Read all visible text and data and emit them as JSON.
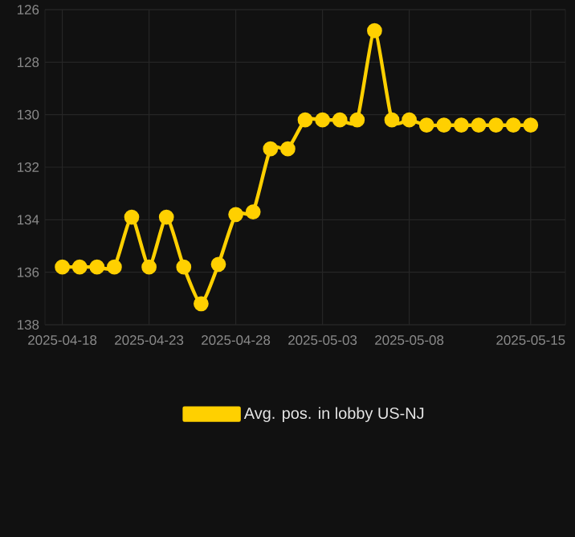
{
  "chart_data": {
    "type": "line",
    "x": [
      "2025-04-18",
      "2025-04-19",
      "2025-04-20",
      "2025-04-21",
      "2025-04-22",
      "2025-04-23",
      "2025-04-24",
      "2025-04-25",
      "2025-04-26",
      "2025-04-27",
      "2025-04-28",
      "2025-04-29",
      "2025-04-30",
      "2025-05-01",
      "2025-05-02",
      "2025-05-03",
      "2025-05-04",
      "2025-05-05",
      "2025-05-06",
      "2025-05-07",
      "2025-05-08",
      "2025-05-09",
      "2025-05-10",
      "2025-05-11",
      "2025-05-12",
      "2025-05-13",
      "2025-05-14",
      "2025-05-15"
    ],
    "series": [
      {
        "name": "Avg. pos. in lobby US-NJ",
        "color": "#ffd000",
        "values": [
          135.8,
          135.8,
          135.8,
          135.8,
          133.9,
          135.8,
          133.9,
          135.8,
          137.2,
          135.7,
          133.8,
          133.7,
          131.3,
          131.3,
          130.2,
          130.2,
          130.2,
          130.2,
          126.8,
          130.2,
          130.2,
          130.4,
          130.4,
          130.4,
          130.4,
          130.4,
          130.4,
          130.4
        ]
      }
    ],
    "xlim": [
      "2025-04-17",
      "2025-05-17"
    ],
    "xticks": [
      "2025-04-18",
      "2025-04-23",
      "2025-04-28",
      "2025-05-03",
      "2025-05-08",
      "2025-05-15"
    ],
    "ylim": [
      138,
      126
    ],
    "yticks": [
      126,
      128,
      130,
      132,
      134,
      136,
      138
    ],
    "grid": true,
    "legend": "bottom",
    "marker": "circle",
    "line_style": "solid"
  }
}
